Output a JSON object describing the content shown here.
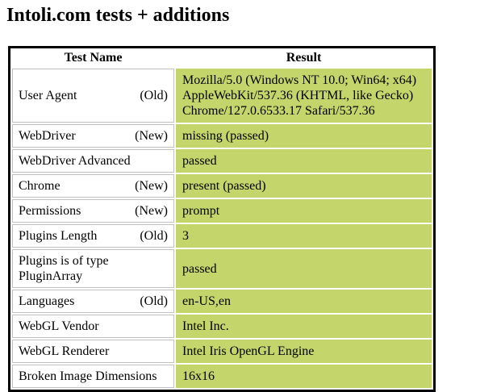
{
  "page": {
    "title": "Intoli.com tests + additions"
  },
  "table": {
    "headers": {
      "test_name": "Test Name",
      "result": "Result"
    },
    "rows": [
      {
        "name": "User Agent",
        "tag": "(Old)",
        "result": "Mozilla/5.0 (Windows NT 10.0; Win64; x64) AppleWebKit/537.36 (KHTML, like Gecko) Chrome/127.0.6533.17 Safari/537.36"
      },
      {
        "name": "WebDriver",
        "tag": "(New)",
        "result": "missing (passed)"
      },
      {
        "name": "WebDriver Advanced",
        "tag": "",
        "result": "passed"
      },
      {
        "name": "Chrome",
        "tag": "(New)",
        "result": "present (passed)"
      },
      {
        "name": "Permissions",
        "tag": "(New)",
        "result": "prompt"
      },
      {
        "name": "Plugins Length",
        "tag": "(Old)",
        "result": "3"
      },
      {
        "name": "Plugins is of type PluginArray",
        "tag": "",
        "result": "passed"
      },
      {
        "name": "Languages",
        "tag": "(Old)",
        "result": "en-US,en"
      },
      {
        "name": "WebGL Vendor",
        "tag": "",
        "result": "Intel Inc."
      },
      {
        "name": "WebGL Renderer",
        "tag": "",
        "result": "Intel Iris OpenGL Engine"
      },
      {
        "name": "Broken Image Dimensions",
        "tag": "",
        "result": "16x16"
      }
    ]
  },
  "colors": {
    "result_bg": "#c4d56c",
    "cell_border": "#c0c0c0",
    "table_border": "#000000",
    "page_bg": "#ffffff",
    "text": "#000000"
  }
}
